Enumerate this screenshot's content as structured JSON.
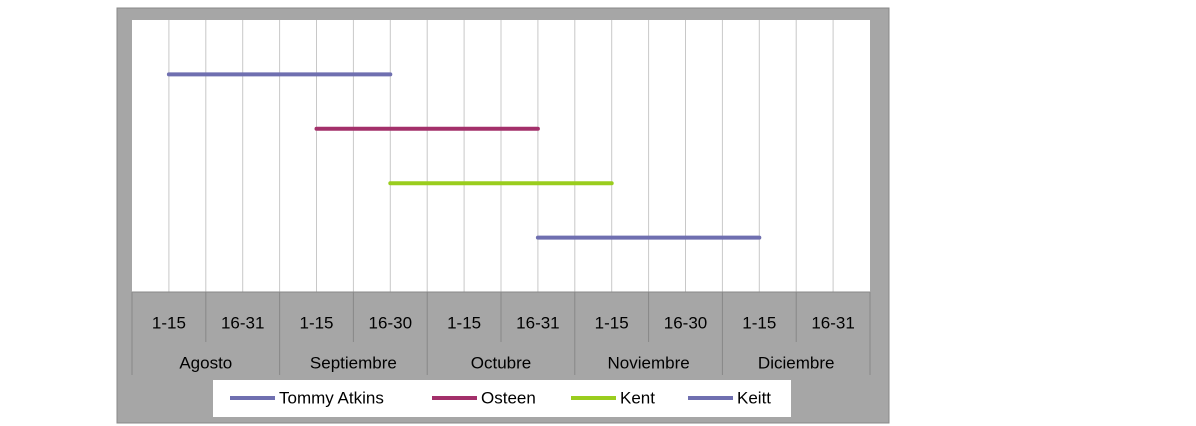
{
  "chart_data": {
    "type": "line",
    "categories": [
      "1-15",
      "16-31",
      "1-15",
      "16-30",
      "1-15",
      "16-31",
      "1-15",
      "16-30",
      "1-15",
      "16-31"
    ],
    "groups": [
      "Agosto",
      "Septiembre",
      "Octubre",
      "Noviembre",
      "Diciembre"
    ],
    "ylim": [
      0,
      5
    ],
    "series": [
      {
        "name": "Tommy Atkins",
        "color": "#6f6fb0",
        "values": [
          4,
          4,
          4,
          4,
          null,
          null,
          null,
          null,
          null,
          null
        ]
      },
      {
        "name": "Osteen",
        "color": "#a3306a",
        "values": [
          null,
          null,
          3,
          3,
          3,
          3,
          null,
          null,
          null,
          null
        ]
      },
      {
        "name": "Kent",
        "color": "#9acd1e",
        "values": [
          null,
          null,
          null,
          2,
          2,
          2,
          2,
          null,
          null,
          null
        ]
      },
      {
        "name": "Keitt",
        "color": "#6f6fb0",
        "values": [
          null,
          null,
          null,
          null,
          null,
          1,
          1,
          1,
          1,
          null
        ]
      }
    ],
    "legend": "bottom"
  }
}
